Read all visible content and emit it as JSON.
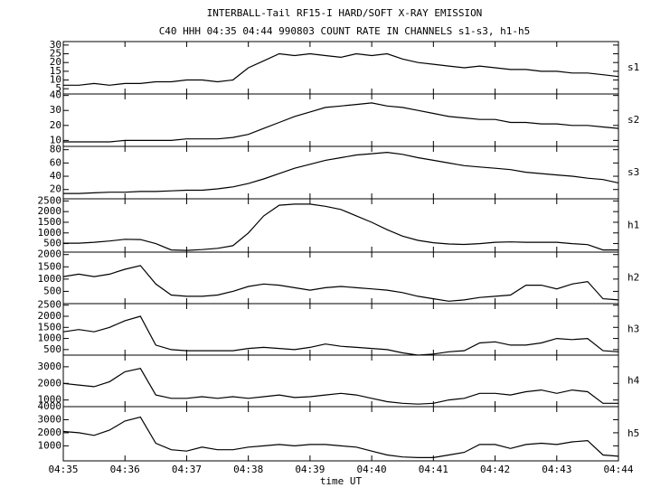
{
  "chart_data": {
    "type": "line",
    "title": "INTERBALL-Tail RF15-I HARD/SOFT X-RAY EMISSION",
    "subtitle": "C40 HHH 04:35 04:44 990803  COUNT RATE IN CHANNELS s1-s3, h1-h5",
    "x_label": "time UT",
    "color": "#000000",
    "x": [
      35,
      35.25,
      35.5,
      35.75,
      36,
      36.25,
      36.5,
      36.75,
      37,
      37.25,
      37.5,
      37.75,
      38,
      38.25,
      38.5,
      38.75,
      39,
      39.25,
      39.5,
      39.75,
      40,
      40.25,
      40.5,
      40.75,
      41,
      41.25,
      41.5,
      41.75,
      42,
      42.25,
      42.5,
      42.75,
      43,
      43.25,
      43.5,
      43.75,
      44
    ],
    "xlim": [
      35,
      44
    ],
    "xticks": [
      {
        "value": 35,
        "label": "04:35"
      },
      {
        "value": 36,
        "label": "04:36"
      },
      {
        "value": 37,
        "label": "04:37"
      },
      {
        "value": 38,
        "label": "04:38"
      },
      {
        "value": 39,
        "label": "04:39"
      },
      {
        "value": 40,
        "label": "04:40"
      },
      {
        "value": 41,
        "label": "04:41"
      },
      {
        "value": 42,
        "label": "04:42"
      },
      {
        "value": 43,
        "label": "04:43"
      },
      {
        "value": 44,
        "label": "04:44"
      }
    ],
    "panels": [
      {
        "name": "s1",
        "ylim": [
          2,
          32
        ],
        "yticks": [
          5,
          10,
          15,
          20,
          25,
          30
        ],
        "values": [
          7,
          7,
          8,
          7,
          8,
          8,
          9,
          9,
          10,
          10,
          9,
          10,
          17,
          21,
          25,
          24,
          25,
          24,
          23,
          25,
          24,
          25,
          22,
          20,
          19,
          18,
          17,
          18,
          17,
          16,
          16,
          15,
          15,
          14,
          14,
          13,
          12
        ]
      },
      {
        "name": "s2",
        "ylim": [
          6,
          41
        ],
        "yticks": [
          10,
          20,
          30,
          40
        ],
        "values": [
          9,
          9,
          9,
          9,
          10,
          10,
          10,
          10,
          11,
          11,
          11,
          12,
          14,
          18,
          22,
          26,
          29,
          32,
          33,
          34,
          35,
          33,
          32,
          30,
          28,
          26,
          25,
          24,
          24,
          22,
          22,
          21,
          21,
          20,
          20,
          19,
          18
        ]
      },
      {
        "name": "s3",
        "ylim": [
          6,
          85
        ],
        "yticks": [
          20,
          40,
          60,
          80
        ],
        "values": [
          14,
          14,
          15,
          16,
          16,
          17,
          17,
          18,
          19,
          19,
          21,
          24,
          29,
          36,
          44,
          52,
          58,
          64,
          68,
          72,
          74,
          76,
          73,
          68,
          64,
          60,
          56,
          54,
          52,
          50,
          46,
          44,
          42,
          40,
          37,
          35,
          30
        ]
      },
      {
        "name": "h1",
        "ylim": [
          100,
          2600
        ],
        "yticks": [
          500,
          1000,
          1500,
          2000,
          2500
        ],
        "values": [
          520,
          520,
          560,
          620,
          700,
          690,
          500,
          200,
          180,
          220,
          280,
          400,
          1000,
          1800,
          2300,
          2350,
          2350,
          2250,
          2100,
          1800,
          1500,
          1150,
          850,
          650,
          540,
          480,
          460,
          500,
          560,
          580,
          560,
          560,
          560,
          500,
          450,
          200,
          200
        ]
      },
      {
        "name": "h2",
        "ylim": [
          0,
          2100
        ],
        "yticks": [
          500,
          1000,
          1500,
          2000
        ],
        "values": [
          1100,
          1200,
          1100,
          1200,
          1400,
          1550,
          800,
          350,
          300,
          300,
          350,
          500,
          700,
          800,
          750,
          650,
          550,
          650,
          700,
          650,
          600,
          550,
          450,
          300,
          200,
          100,
          150,
          250,
          300,
          350,
          750,
          750,
          600,
          800,
          900,
          200,
          150
        ]
      },
      {
        "name": "h3",
        "ylim": [
          250,
          2570
        ],
        "yticks": [
          500,
          1000,
          1500,
          2000,
          2500
        ],
        "values": [
          1300,
          1400,
          1300,
          1500,
          1800,
          2000,
          700,
          500,
          450,
          450,
          450,
          450,
          550,
          600,
          550,
          500,
          600,
          750,
          650,
          600,
          550,
          500,
          350,
          250,
          300,
          400,
          450,
          800,
          850,
          700,
          700,
          800,
          1000,
          950,
          1000,
          450,
          400
        ]
      },
      {
        "name": "h4",
        "ylim": [
          600,
          3700
        ],
        "yticks": [
          1000,
          2000,
          3000
        ],
        "values": [
          2000,
          1900,
          1800,
          2100,
          2700,
          2900,
          1300,
          1100,
          1100,
          1200,
          1100,
          1200,
          1100,
          1200,
          1300,
          1150,
          1200,
          1300,
          1400,
          1300,
          1100,
          900,
          800,
          750,
          800,
          1000,
          1100,
          1400,
          1400,
          1300,
          1500,
          1600,
          1400,
          1600,
          1500,
          800,
          800
        ]
      },
      {
        "name": "h5",
        "ylim": [
          -150,
          4000
        ],
        "yticks": [
          1000,
          2000,
          3000,
          4000
        ],
        "values": [
          2100,
          2000,
          1800,
          2200,
          2900,
          3200,
          1200,
          700,
          600,
          900,
          700,
          700,
          900,
          1000,
          1100,
          1000,
          1100,
          1100,
          1000,
          900,
          600,
          300,
          150,
          100,
          100,
          300,
          500,
          1100,
          1100,
          800,
          1100,
          1200,
          1100,
          1300,
          1400,
          300,
          200
        ]
      }
    ]
  }
}
